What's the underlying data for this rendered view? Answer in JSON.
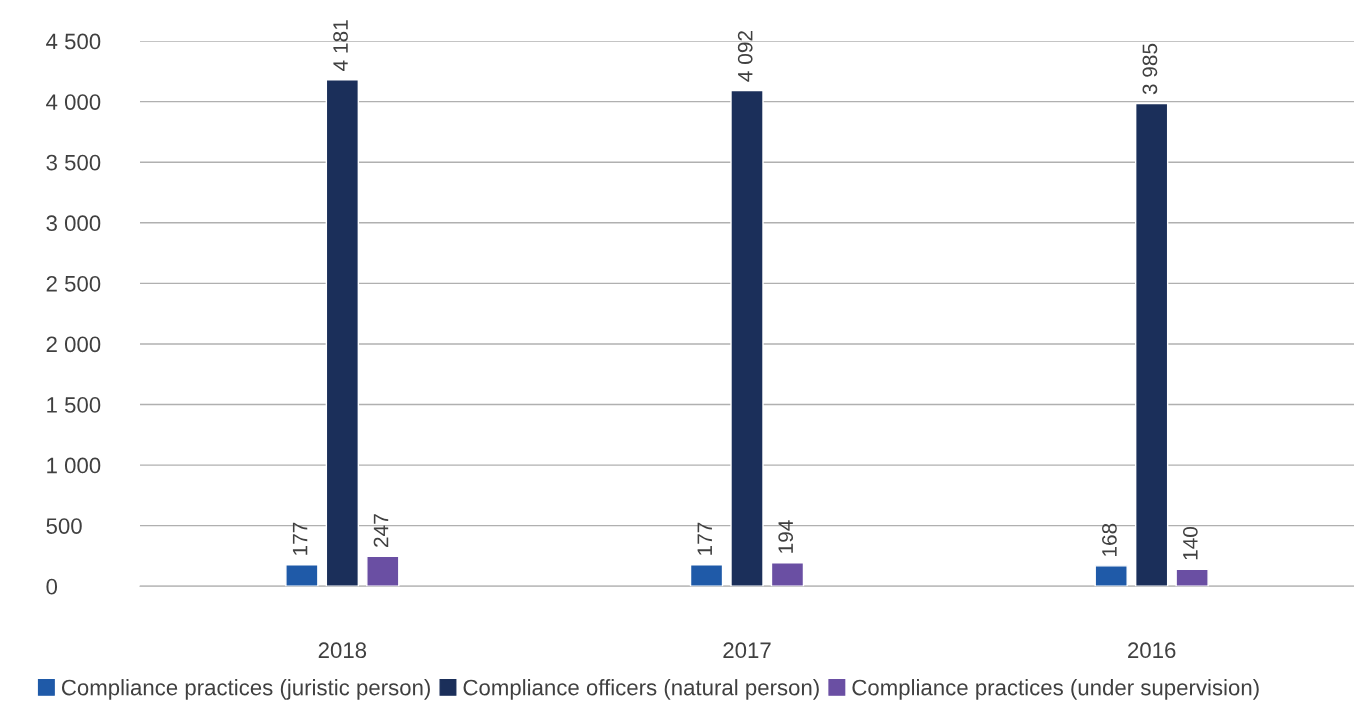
{
  "chart_data": {
    "type": "bar",
    "categories": [
      "2018",
      "2017",
      "2016"
    ],
    "series": [
      {
        "name": "Compliance practices (juristic person)",
        "color": "#1f5aa8",
        "values": [
          177,
          177,
          168
        ],
        "value_labels": [
          "177",
          "177",
          "168"
        ]
      },
      {
        "name": "Compliance officers (natural person)",
        "color": "#1b2f5a",
        "values": [
          4181,
          4092,
          3985
        ],
        "value_labels": [
          "4 181",
          "4 092",
          "3 985"
        ]
      },
      {
        "name": "Compliance practices (under supervision)",
        "color": "#6a4fa3",
        "values": [
          247,
          194,
          140
        ],
        "value_labels": [
          "247",
          "194",
          "140"
        ]
      }
    ],
    "ylim": [
      0,
      4500
    ],
    "yticks": [
      {
        "value": 0,
        "label": "0"
      },
      {
        "value": 500,
        "label": "500"
      },
      {
        "value": 1000,
        "label": "1 000"
      },
      {
        "value": 1500,
        "label": "1 500"
      },
      {
        "value": 2000,
        "label": "2 000"
      },
      {
        "value": 2500,
        "label": "2 500"
      },
      {
        "value": 3000,
        "label": "3 000"
      },
      {
        "value": 3500,
        "label": "3 500"
      },
      {
        "value": 4000,
        "label": "4 000"
      },
      {
        "value": 4500,
        "label": "4 500"
      }
    ],
    "grid": "y",
    "legend": "bottom"
  }
}
